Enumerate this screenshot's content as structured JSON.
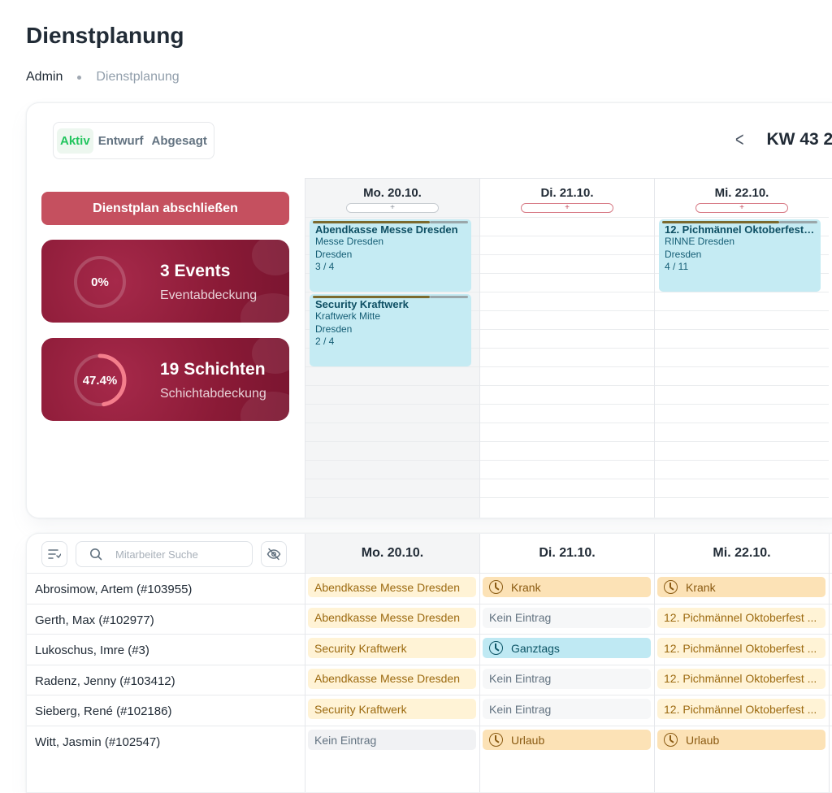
{
  "page": {
    "title": "Dienstplanung"
  },
  "breadcrumb": {
    "items": [
      "Admin",
      "Dienstplanung"
    ]
  },
  "status_tabs": [
    "Aktiv",
    "Entwurf",
    "Abgesagt"
  ],
  "week_nav": {
    "prev_icon": "chevron-left-icon",
    "label": "KW 43 2"
  },
  "close_button": "Dienstplan abschließen",
  "stats": [
    {
      "percent": "0%",
      "value": 0,
      "big": "3 Events",
      "small": "Eventabdeckung"
    },
    {
      "percent": "47.4%",
      "value": 0.474,
      "big": "19 Schichten",
      "small": "Schichtabdeckung"
    }
  ],
  "calendar": {
    "days": [
      "Mo. 20.10.",
      "Di. 21.10.",
      "Mi. 22.10."
    ],
    "add_label": "+",
    "events": [
      {
        "day": 0,
        "title": "Abendkasse Messe Dresden",
        "venue": "Messe Dresden",
        "city": "Dresden",
        "count": "3 / 4"
      },
      {
        "day": 0,
        "title": "Security Kraftwerk",
        "venue": "Kraftwerk Mitte",
        "city": "Dresden",
        "count": "2 / 4"
      },
      {
        "day": 2,
        "title": "12. Pichmännel Oktoberfest ...",
        "venue": "RINNE Dresden",
        "city": "Dresden",
        "count": "4 / 11"
      }
    ]
  },
  "staff": {
    "search_placeholder": "Mitarbeiter Suche",
    "filter_icon": "filter-list-icon",
    "hide_icon": "eye-off-icon",
    "days": [
      "Mo. 20.10.",
      "Di. 21.10.",
      "Mi. 22.10."
    ],
    "rows": [
      {
        "name": "Abrosimow, Artem (#103955)",
        "cells": [
          {
            "text": "Abendkasse Messe Dresden",
            "kind": "y"
          },
          {
            "text": "Krank",
            "kind": "k",
            "icon": "clock-icon"
          },
          {
            "text": "Krank",
            "kind": "k",
            "icon": "clock-icon"
          }
        ]
      },
      {
        "name": "Gerth, Max (#102977)",
        "cells": [
          {
            "text": "Abendkasse Messe Dresden",
            "kind": "y"
          },
          {
            "text": "Kein Eintrag",
            "kind": "e"
          },
          {
            "text": "12. Pichmännel Oktoberfest ...",
            "kind": "y"
          }
        ]
      },
      {
        "name": "Lukoschus, Imre (#3)",
        "cells": [
          {
            "text": "Security Kraftwerk",
            "kind": "y"
          },
          {
            "text": "Ganztags",
            "kind": "b",
            "icon": "clock-icon"
          },
          {
            "text": "12. Pichmännel Oktoberfest ...",
            "kind": "y"
          }
        ]
      },
      {
        "name": "Radenz, Jenny (#103412)",
        "cells": [
          {
            "text": "Abendkasse Messe Dresden",
            "kind": "y"
          },
          {
            "text": "Kein Eintrag",
            "kind": "e"
          },
          {
            "text": "12. Pichmännel Oktoberfest ...",
            "kind": "y"
          }
        ]
      },
      {
        "name": "Sieberg, René (#102186)",
        "cells": [
          {
            "text": "Security Kraftwerk",
            "kind": "y"
          },
          {
            "text": "Kein Eintrag",
            "kind": "e"
          },
          {
            "text": "12. Pichmännel Oktoberfest ...",
            "kind": "y"
          }
        ]
      },
      {
        "name": "Witt, Jasmin (#102547)",
        "cells": [
          {
            "text": "Kein Eintrag",
            "kind": "e"
          },
          {
            "text": "Urlaub",
            "kind": "k",
            "icon": "clock-icon"
          },
          {
            "text": "Urlaub",
            "kind": "k",
            "icon": "clock-icon"
          }
        ]
      }
    ]
  }
}
